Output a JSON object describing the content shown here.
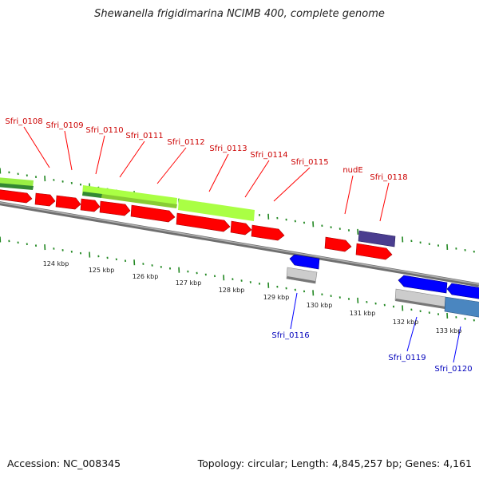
{
  "title": "Shewanella frigidimarina NCIMB 400, complete genome",
  "footer": {
    "accession": "Accession: NC_008345",
    "topology": "Topology: circular; Length: 4,845,257 bp; Genes: 4,161"
  },
  "colors": {
    "forward_cds": "#ff0000",
    "reverse_cds": "#0000ff",
    "forward_label": "#cc0000",
    "reverse_label": "#0000bb",
    "rna_bar": "#aaff44",
    "tick": "#228822",
    "backbone": "#888888"
  },
  "genes_forward": [
    {
      "name": "Sfri_0108"
    },
    {
      "name": "Sfri_0109"
    },
    {
      "name": "Sfri_0110"
    },
    {
      "name": "Sfri_0111"
    },
    {
      "name": "Sfri_0112"
    },
    {
      "name": "Sfri_0113"
    },
    {
      "name": "Sfri_0114"
    },
    {
      "name": "Sfri_0115"
    },
    {
      "name": "nudE"
    },
    {
      "name": "Sfri_0118"
    }
  ],
  "genes_reverse": [
    {
      "name": "Sfri_0116"
    },
    {
      "name": "Sfri_0119"
    },
    {
      "name": "Sfri_0120"
    }
  ],
  "scale_labels": [
    "124 kbp",
    "125 kbp",
    "126 kbp",
    "127 kbp",
    "128 kbp",
    "129 kbp",
    "130 kbp",
    "131 kbp",
    "132 kbp",
    "133 kbp"
  ]
}
